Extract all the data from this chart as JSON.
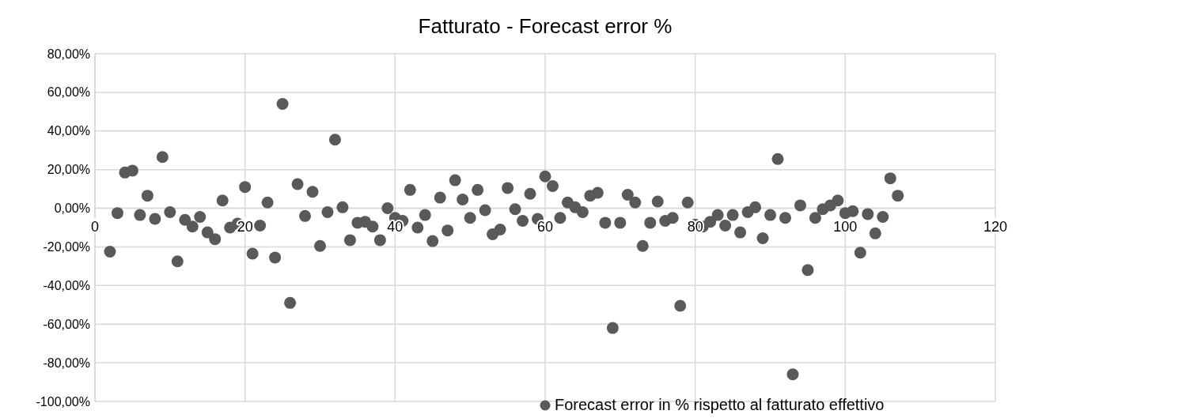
{
  "chart_data": {
    "type": "scatter",
    "title": "Fatturato  -  Forecast error %",
    "xlim": [
      0,
      120
    ],
    "xticks": [
      0,
      20,
      40,
      60,
      80,
      100,
      120
    ],
    "ylim": [
      -100,
      80
    ],
    "yticks": [
      {
        "value": -100,
        "label": "-100,00%"
      },
      {
        "value": -80,
        "label": "-80,00%"
      },
      {
        "value": -60,
        "label": "-60,00%"
      },
      {
        "value": -40,
        "label": "-40,00%"
      },
      {
        "value": -20,
        "label": "-20,00%"
      },
      {
        "value": 0,
        "label": "0,00%"
      },
      {
        "value": 20,
        "label": "20,00%"
      },
      {
        "value": 40,
        "label": "40,00%"
      },
      {
        "value": 60,
        "label": "60,00%"
      },
      {
        "value": 80,
        "label": "80,00%"
      }
    ],
    "grid": true,
    "legend": "bottom",
    "marker": "circle",
    "series": [
      {
        "name": "Forecast error in % rispetto al fatturato effettivo",
        "color": "#595959",
        "x": [
          2,
          3,
          4,
          5,
          6,
          7,
          8,
          9,
          10,
          11,
          12,
          13,
          14,
          15,
          16,
          17,
          18,
          19,
          20,
          21,
          22,
          23,
          24,
          25,
          26,
          27,
          28,
          29,
          30,
          31,
          32,
          33,
          34,
          35,
          36,
          37,
          38,
          39,
          40,
          41,
          42,
          43,
          44,
          45,
          46,
          47,
          48,
          49,
          50,
          51,
          52,
          53,
          54,
          55,
          56,
          57,
          58,
          59,
          60,
          61,
          62,
          63,
          64,
          65,
          66,
          67,
          68,
          69,
          70,
          71,
          72,
          73,
          74,
          75,
          76,
          77,
          78,
          79,
          80,
          81,
          82,
          83,
          84,
          85,
          86,
          87,
          88,
          89,
          90,
          91,
          92,
          93,
          94,
          95,
          96,
          97,
          98,
          99,
          100,
          101,
          102,
          103,
          104,
          105,
          106,
          107
        ],
        "values": [
          -22.5,
          -2.5,
          18.5,
          19.5,
          -3.5,
          6.5,
          -5.5,
          26.5,
          -2,
          -27.5,
          -6,
          -9.5,
          -4.5,
          -12.5,
          -16,
          4,
          -10,
          -8,
          11,
          -23.5,
          -9,
          3,
          -25.5,
          54,
          -49,
          12.5,
          -4,
          8.5,
          -19.5,
          -2,
          35.5,
          0.5,
          -16.5,
          -7.5,
          -7,
          -9.5,
          -16.5,
          0,
          -5,
          -6.5,
          9.5,
          -10,
          -3.5,
          -17,
          5.5,
          -11.5,
          14.5,
          4.5,
          -5,
          9.5,
          -1,
          -13.5,
          -11,
          10.5,
          -0.5,
          -6.5,
          7.5,
          -5.5,
          16.5,
          11.5,
          -5,
          3,
          0.5,
          -2,
          6.5,
          8,
          -7.5,
          -62,
          -7.5,
          7,
          3,
          -19.5,
          -7.5,
          3.5,
          -6.5,
          -5,
          -50.5,
          3,
          -8.5,
          -9.5,
          -7,
          -3.5,
          -9,
          -3.5,
          -12.5,
          -2,
          0.5,
          -15.5,
          -3.5,
          25.5,
          -5,
          -86,
          1.5,
          -32,
          -5,
          -0.5,
          1.5,
          4,
          -2.5,
          -1.5,
          -23,
          -3,
          -13,
          -4.5,
          15.5,
          6.5
        ]
      }
    ]
  }
}
